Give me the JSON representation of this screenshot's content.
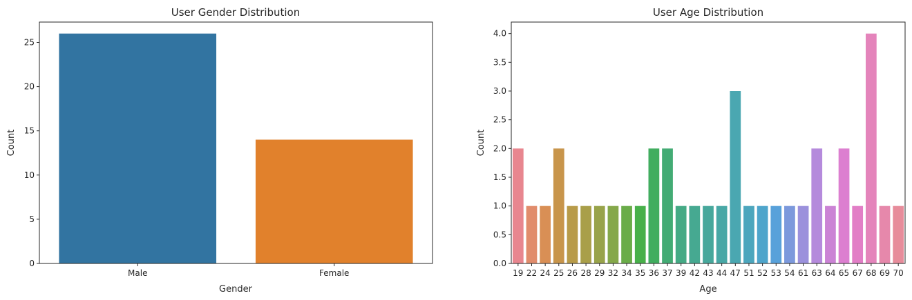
{
  "chart_data": [
    {
      "type": "bar",
      "title": "User Gender Distribution",
      "xlabel": "Gender",
      "ylabel": "Count",
      "categories": [
        "Male",
        "Female"
      ],
      "values": [
        26,
        14
      ],
      "ylim": [
        0,
        27.3
      ],
      "yticks": [
        0,
        5,
        10,
        15,
        20,
        25
      ],
      "ytick_labels": [
        "0",
        "5",
        "10",
        "15",
        "20",
        "25"
      ],
      "colors": [
        "#3274a1",
        "#e1812c"
      ],
      "grid": false
    },
    {
      "type": "bar",
      "title": "User Age Distribution",
      "xlabel": "Age",
      "ylabel": "Count",
      "categories": [
        "19",
        "22",
        "24",
        "25",
        "26",
        "28",
        "29",
        "32",
        "34",
        "35",
        "36",
        "37",
        "39",
        "42",
        "43",
        "44",
        "47",
        "51",
        "52",
        "53",
        "54",
        "61",
        "63",
        "64",
        "65",
        "67",
        "68",
        "69",
        "70"
      ],
      "values": [
        2,
        1,
        1,
        2,
        1,
        1,
        1,
        1,
        1,
        1,
        2,
        2,
        1,
        1,
        1,
        1,
        3,
        1,
        1,
        1,
        1,
        1,
        2,
        1,
        2,
        1,
        4,
        1,
        1
      ],
      "ylim": [
        0,
        4.2
      ],
      "yticks": [
        0,
        0.5,
        1,
        1.5,
        2,
        2.5,
        3,
        3.5,
        4
      ],
      "ytick_labels": [
        "0.0",
        "0.5",
        "1.0",
        "1.5",
        "2.0",
        "2.5",
        "3.0",
        "3.5",
        "4.0"
      ],
      "colors": [
        "#e8868f",
        "#e18c6c",
        "#d98f55",
        "#c8954b",
        "#b89b49",
        "#a99f49",
        "#98a34a",
        "#85a84a",
        "#6aac49",
        "#48b04a",
        "#41ad5f",
        "#43ab74",
        "#45aa85",
        "#46a991",
        "#47a89c",
        "#48a8a6",
        "#4aa7b1",
        "#4ca6bd",
        "#4ea5cb",
        "#58a1da",
        "#7c99dc",
        "#9b91dc",
        "#b58adc",
        "#cb83d5",
        "#dc7fd0",
        "#e27ec6",
        "#e484bb",
        "#e688ab",
        "#e78c9b"
      ],
      "grid": false
    }
  ]
}
